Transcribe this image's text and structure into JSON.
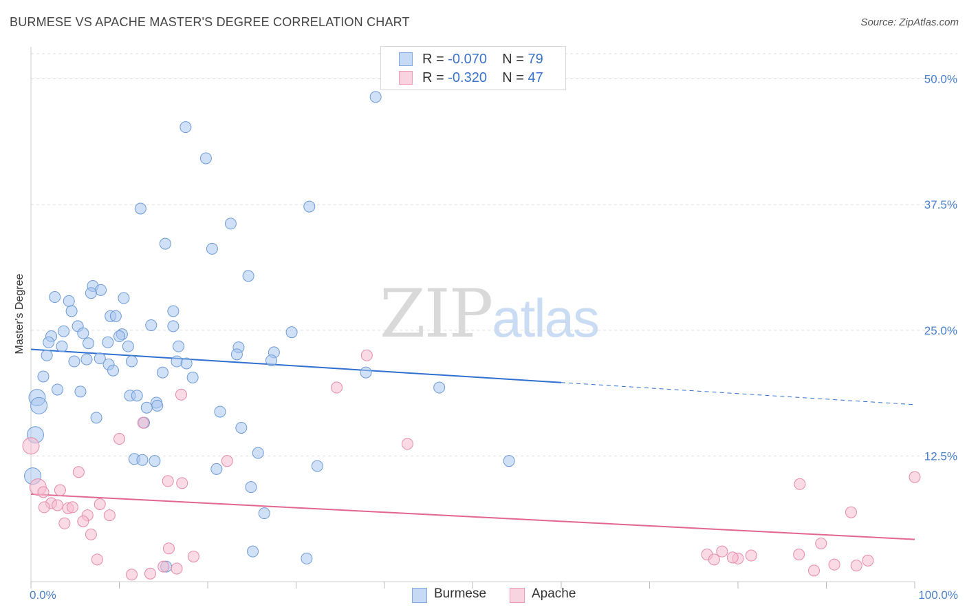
{
  "header": {
    "title": "BURMESE VS APACHE MASTER'S DEGREE CORRELATION CHART",
    "source": "Source: ZipAtlas.com"
  },
  "watermark": {
    "zip": "ZIP",
    "atlas": "atlas"
  },
  "legend_top": {
    "rows": [
      {
        "r_label": "R = ",
        "r_value": "-0.070",
        "n_label": "N = ",
        "n_value": "79",
        "color": "#a9c7ef"
      },
      {
        "r_label": "R = ",
        "r_value": "-0.320",
        "n_label": "N = ",
        "n_value": "47",
        "color": "#f6bcd0"
      }
    ]
  },
  "legend_bottom": [
    {
      "label": "Burmese",
      "color": "#a9c7ef"
    },
    {
      "label": "Apache",
      "color": "#f6bcd0"
    }
  ],
  "colors": {
    "burmese_fill": "#a9c7ef",
    "burmese_stroke": "#6c9ad6",
    "burmese_line": "#2f6fcf",
    "apache_fill": "#f6bcd0",
    "apache_stroke": "#e58aa9",
    "apache_line": "#e2668f",
    "tick_label": "#4a80c8",
    "grid": "#dddddd"
  },
  "chart_data": {
    "type": "scatter",
    "title": "BURMESE VS APACHE MASTER'S DEGREE CORRELATION CHART",
    "xlabel": "",
    "ylabel": "Master's Degree",
    "xlim": [
      0,
      100
    ],
    "ylim": [
      0,
      52.5
    ],
    "x_tick_labels": [
      "0.0%",
      "100.0%"
    ],
    "y_ticks": [
      12.5,
      25.0,
      37.5,
      50.0
    ],
    "y_tick_labels": [
      "12.5%",
      "25.0%",
      "37.5%",
      "50.0%"
    ],
    "grid": true,
    "legend_position": "top-center",
    "series": [
      {
        "name": "Burmese",
        "r": -0.07,
        "n": 79,
        "trend": {
          "x0": 0,
          "y0": 23.1,
          "x1": 60,
          "y1": 19.8,
          "dashed_to_x": 100,
          "dashed_to_y": 17.6
        },
        "points": [
          [
            39.0,
            48.2
          ],
          [
            17.5,
            45.2
          ],
          [
            19.8,
            42.1
          ],
          [
            31.5,
            37.3
          ],
          [
            12.4,
            37.1
          ],
          [
            22.6,
            35.6
          ],
          [
            15.2,
            33.6
          ],
          [
            20.5,
            33.1
          ],
          [
            24.6,
            30.4
          ],
          [
            7.0,
            29.4
          ],
          [
            7.9,
            29.0
          ],
          [
            6.8,
            28.7
          ],
          [
            2.7,
            28.3
          ],
          [
            10.5,
            28.2
          ],
          [
            4.3,
            27.9
          ],
          [
            4.6,
            26.9
          ],
          [
            16.1,
            26.9
          ],
          [
            9.0,
            26.4
          ],
          [
            9.6,
            26.4
          ],
          [
            13.6,
            25.5
          ],
          [
            16.1,
            25.4
          ],
          [
            5.3,
            25.4
          ],
          [
            3.7,
            24.9
          ],
          [
            29.5,
            24.8
          ],
          [
            5.9,
            24.7
          ],
          [
            10.3,
            24.6
          ],
          [
            2.3,
            24.4
          ],
          [
            10.0,
            24.4
          ],
          [
            2.0,
            23.8
          ],
          [
            6.5,
            23.7
          ],
          [
            8.7,
            23.8
          ],
          [
            11.0,
            23.4
          ],
          [
            3.5,
            23.4
          ],
          [
            16.7,
            23.4
          ],
          [
            23.5,
            23.3
          ],
          [
            27.5,
            22.8
          ],
          [
            23.3,
            22.6
          ],
          [
            1.8,
            22.5
          ],
          [
            7.8,
            22.2
          ],
          [
            6.3,
            22.1
          ],
          [
            4.9,
            21.9
          ],
          [
            11.4,
            21.9
          ],
          [
            16.5,
            21.9
          ],
          [
            17.6,
            21.7
          ],
          [
            27.2,
            22.0
          ],
          [
            8.8,
            21.6
          ],
          [
            9.3,
            21.0
          ],
          [
            14.9,
            20.8
          ],
          [
            37.9,
            20.8
          ],
          [
            18.3,
            20.3
          ],
          [
            1.4,
            20.4
          ],
          [
            3.0,
            19.1
          ],
          [
            46.2,
            19.3
          ],
          [
            5.6,
            18.9
          ],
          [
            11.2,
            18.5
          ],
          [
            12.0,
            18.5
          ],
          [
            0.7,
            18.3
          ],
          [
            14.2,
            17.8
          ],
          [
            13.1,
            17.3
          ],
          [
            0.9,
            17.5
          ],
          [
            21.4,
            16.9
          ],
          [
            7.4,
            16.3
          ],
          [
            12.8,
            15.8
          ],
          [
            23.8,
            15.3
          ],
          [
            0.5,
            14.6
          ],
          [
            25.7,
            12.8
          ],
          [
            11.7,
            12.2
          ],
          [
            14.0,
            12.0
          ],
          [
            54.1,
            12.0
          ],
          [
            32.4,
            11.5
          ],
          [
            21.0,
            11.2
          ],
          [
            0.2,
            10.5
          ],
          [
            24.9,
            9.4
          ],
          [
            26.4,
            6.8
          ],
          [
            25.1,
            3.0
          ],
          [
            31.2,
            2.3
          ],
          [
            15.3,
            1.5
          ],
          [
            12.6,
            12.1
          ],
          [
            14.3,
            17.5
          ]
        ]
      },
      {
        "name": "Apache",
        "r": -0.32,
        "n": 47,
        "trend": {
          "x0": 0,
          "y0": 8.7,
          "x1": 100,
          "y1": 4.2
        },
        "points": [
          [
            0.0,
            13.5
          ],
          [
            38.0,
            22.5
          ],
          [
            34.6,
            19.3
          ],
          [
            17.0,
            18.6
          ],
          [
            12.7,
            15.8
          ],
          [
            42.6,
            13.7
          ],
          [
            10.0,
            14.2
          ],
          [
            22.2,
            12.0
          ],
          [
            5.4,
            10.9
          ],
          [
            15.5,
            10.0
          ],
          [
            17.1,
            9.8
          ],
          [
            87.0,
            9.7
          ],
          [
            100.0,
            10.4
          ],
          [
            0.8,
            9.4
          ],
          [
            1.4,
            8.9
          ],
          [
            3.3,
            9.1
          ],
          [
            2.3,
            7.8
          ],
          [
            1.5,
            7.4
          ],
          [
            3.0,
            7.6
          ],
          [
            4.2,
            7.3
          ],
          [
            4.7,
            7.4
          ],
          [
            7.8,
            7.7
          ],
          [
            6.4,
            6.6
          ],
          [
            8.9,
            6.6
          ],
          [
            5.9,
            6.0
          ],
          [
            3.8,
            5.8
          ],
          [
            92.8,
            6.9
          ],
          [
            6.8,
            4.7
          ],
          [
            15.6,
            3.3
          ],
          [
            7.5,
            2.2
          ],
          [
            18.4,
            2.5
          ],
          [
            89.4,
            3.8
          ],
          [
            76.5,
            2.7
          ],
          [
            78.2,
            3.0
          ],
          [
            77.3,
            2.2
          ],
          [
            80.0,
            2.3
          ],
          [
            79.4,
            2.4
          ],
          [
            81.5,
            2.6
          ],
          [
            86.9,
            2.7
          ],
          [
            94.7,
            2.1
          ],
          [
            88.6,
            1.1
          ],
          [
            90.9,
            1.7
          ],
          [
            93.4,
            1.6
          ],
          [
            15.0,
            1.5
          ],
          [
            16.5,
            1.3
          ],
          [
            11.4,
            0.7
          ],
          [
            13.5,
            0.8
          ]
        ]
      }
    ]
  }
}
